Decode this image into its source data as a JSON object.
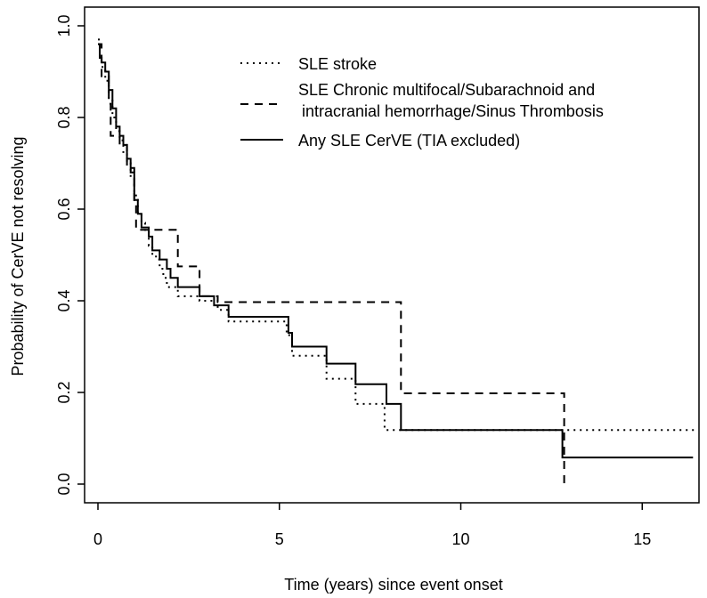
{
  "chart_data": {
    "type": "line",
    "title": "",
    "xlabel": "Time (years) since event onset",
    "ylabel": "Probability of CerVE not resolving",
    "xlim": [
      0,
      16.5
    ],
    "ylim": [
      0,
      1.0
    ],
    "x_ticks": [
      "0",
      "5",
      "10",
      "15"
    ],
    "y_ticks": [
      "0.0",
      "0.2",
      "0.4",
      "0.6",
      "0.8",
      "1.0"
    ],
    "grid": false,
    "legend_position": "top-right",
    "step": true,
    "series": [
      {
        "name": "SLE stroke",
        "line_style": "dotted",
        "points": [
          [
            0,
            0.97
          ],
          [
            0.05,
            0.93
          ],
          [
            0.1,
            0.91
          ],
          [
            0.2,
            0.88
          ],
          [
            0.3,
            0.84
          ],
          [
            0.4,
            0.8
          ],
          [
            0.5,
            0.77
          ],
          [
            0.6,
            0.75
          ],
          [
            0.7,
            0.72
          ],
          [
            0.8,
            0.7
          ],
          [
            0.9,
            0.67
          ],
          [
            1.0,
            0.63
          ],
          [
            1.1,
            0.59
          ],
          [
            1.2,
            0.57
          ],
          [
            1.3,
            0.55
          ],
          [
            1.4,
            0.52
          ],
          [
            1.5,
            0.5
          ],
          [
            1.6,
            0.49
          ],
          [
            1.7,
            0.47
          ],
          [
            1.8,
            0.45
          ],
          [
            1.9,
            0.43
          ],
          [
            2.2,
            0.41
          ],
          [
            2.8,
            0.4
          ],
          [
            3.3,
            0.38
          ],
          [
            3.6,
            0.355
          ],
          [
            5.2,
            0.325
          ],
          [
            5.35,
            0.28
          ],
          [
            6.3,
            0.23
          ],
          [
            7.1,
            0.175
          ],
          [
            7.9,
            0.118
          ],
          [
            16.5,
            0.118
          ]
        ]
      },
      {
        "name": "SLE Chronic multifocal/Subarachnoid and intracranial hemorrhage/Sinus Thrombosis",
        "line_style": "dashed",
        "points": [
          [
            0,
            0.96
          ],
          [
            0.1,
            0.89
          ],
          [
            0.3,
            0.83
          ],
          [
            0.35,
            0.76
          ],
          [
            0.5,
            0.76
          ],
          [
            0.6,
            0.74
          ],
          [
            0.8,
            0.69
          ],
          [
            1.0,
            0.62
          ],
          [
            1.05,
            0.555
          ],
          [
            2.1,
            0.555
          ],
          [
            2.2,
            0.475
          ],
          [
            2.7,
            0.475
          ],
          [
            2.8,
            0.41
          ],
          [
            3.3,
            0.397
          ],
          [
            8.3,
            0.397
          ],
          [
            8.35,
            0.198
          ],
          [
            12.8,
            0.198
          ],
          [
            12.85,
            0.0
          ]
        ]
      },
      {
        "name": "Any SLE CerVE (TIA excluded)",
        "line_style": "solid",
        "points": [
          [
            0,
            0.96
          ],
          [
            0.05,
            0.93
          ],
          [
            0.1,
            0.92
          ],
          [
            0.2,
            0.9
          ],
          [
            0.3,
            0.86
          ],
          [
            0.4,
            0.82
          ],
          [
            0.5,
            0.78
          ],
          [
            0.6,
            0.76
          ],
          [
            0.7,
            0.74
          ],
          [
            0.8,
            0.71
          ],
          [
            0.9,
            0.68
          ],
          [
            1.0,
            0.62
          ],
          [
            1.1,
            0.59
          ],
          [
            1.2,
            0.56
          ],
          [
            1.4,
            0.54
          ],
          [
            1.5,
            0.51
          ],
          [
            1.7,
            0.49
          ],
          [
            1.9,
            0.47
          ],
          [
            2.0,
            0.45
          ],
          [
            2.2,
            0.43
          ],
          [
            2.8,
            0.41
          ],
          [
            3.2,
            0.39
          ],
          [
            3.6,
            0.365
          ],
          [
            5.25,
            0.33
          ],
          [
            5.35,
            0.3
          ],
          [
            6.3,
            0.263
          ],
          [
            7.1,
            0.218
          ],
          [
            7.95,
            0.175
          ],
          [
            8.35,
            0.118
          ],
          [
            12.8,
            0.058
          ],
          [
            16.4,
            0.058
          ]
        ]
      }
    ]
  }
}
